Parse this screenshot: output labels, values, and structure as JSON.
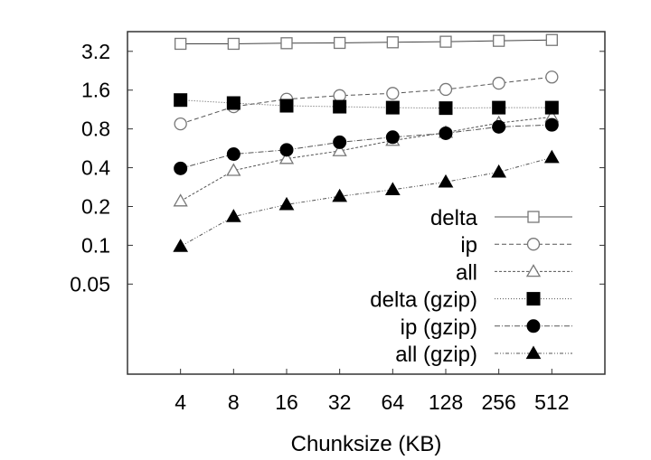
{
  "chart_data": {
    "type": "line",
    "title": "",
    "xlabel": "Chunksize (KB)",
    "ylabel": "",
    "x_scale": "log2",
    "y_scale": "log2",
    "xlim": [
      2,
      1024
    ],
    "ylim": [
      0.01,
      4.55
    ],
    "x": [
      4,
      8,
      16,
      32,
      64,
      128,
      256,
      512
    ],
    "x_tick_labels": [
      "4",
      "8",
      "16",
      "32",
      "64",
      "128",
      "256",
      "512"
    ],
    "y_ticks": [
      3.2,
      1.6,
      0.8,
      0.4,
      0.2,
      0.1,
      0.05
    ],
    "y_tick_labels": [
      "3.2",
      "1.6",
      "0.8",
      "0.4",
      "0.2",
      "0.1",
      "0.05"
    ],
    "grid": false,
    "legend_position": "bottom-right",
    "series": [
      {
        "name": "delta",
        "marker": "open-square",
        "dash": "",
        "values": [
          3.66,
          3.66,
          3.7,
          3.72,
          3.76,
          3.8,
          3.86,
          3.92
        ]
      },
      {
        "name": "ip",
        "marker": "open-circle",
        "dash": "5,3",
        "values": [
          0.875,
          1.19,
          1.36,
          1.45,
          1.51,
          1.62,
          1.81,
          2.02
        ]
      },
      {
        "name": "all",
        "marker": "open-triangle",
        "dash": "3,2",
        "values": [
          0.22,
          0.38,
          0.47,
          0.54,
          0.65,
          0.75,
          0.89,
          0.99
        ]
      },
      {
        "name": "delta (gzip)",
        "marker": "filled-square",
        "dash": "1,2",
        "values": [
          1.34,
          1.27,
          1.21,
          1.19,
          1.17,
          1.16,
          1.17,
          1.17
        ]
      },
      {
        "name": "ip (gzip)",
        "marker": "filled-circle",
        "dash": "6,2,1,2",
        "values": [
          0.395,
          0.51,
          0.55,
          0.63,
          0.69,
          0.74,
          0.83,
          0.86
        ]
      },
      {
        "name": "all (gzip)",
        "marker": "filled-triangle",
        "dash": "4,2,1,2,1,2",
        "values": [
          0.098,
          0.167,
          0.207,
          0.24,
          0.27,
          0.31,
          0.37,
          0.48
        ]
      }
    ]
  }
}
